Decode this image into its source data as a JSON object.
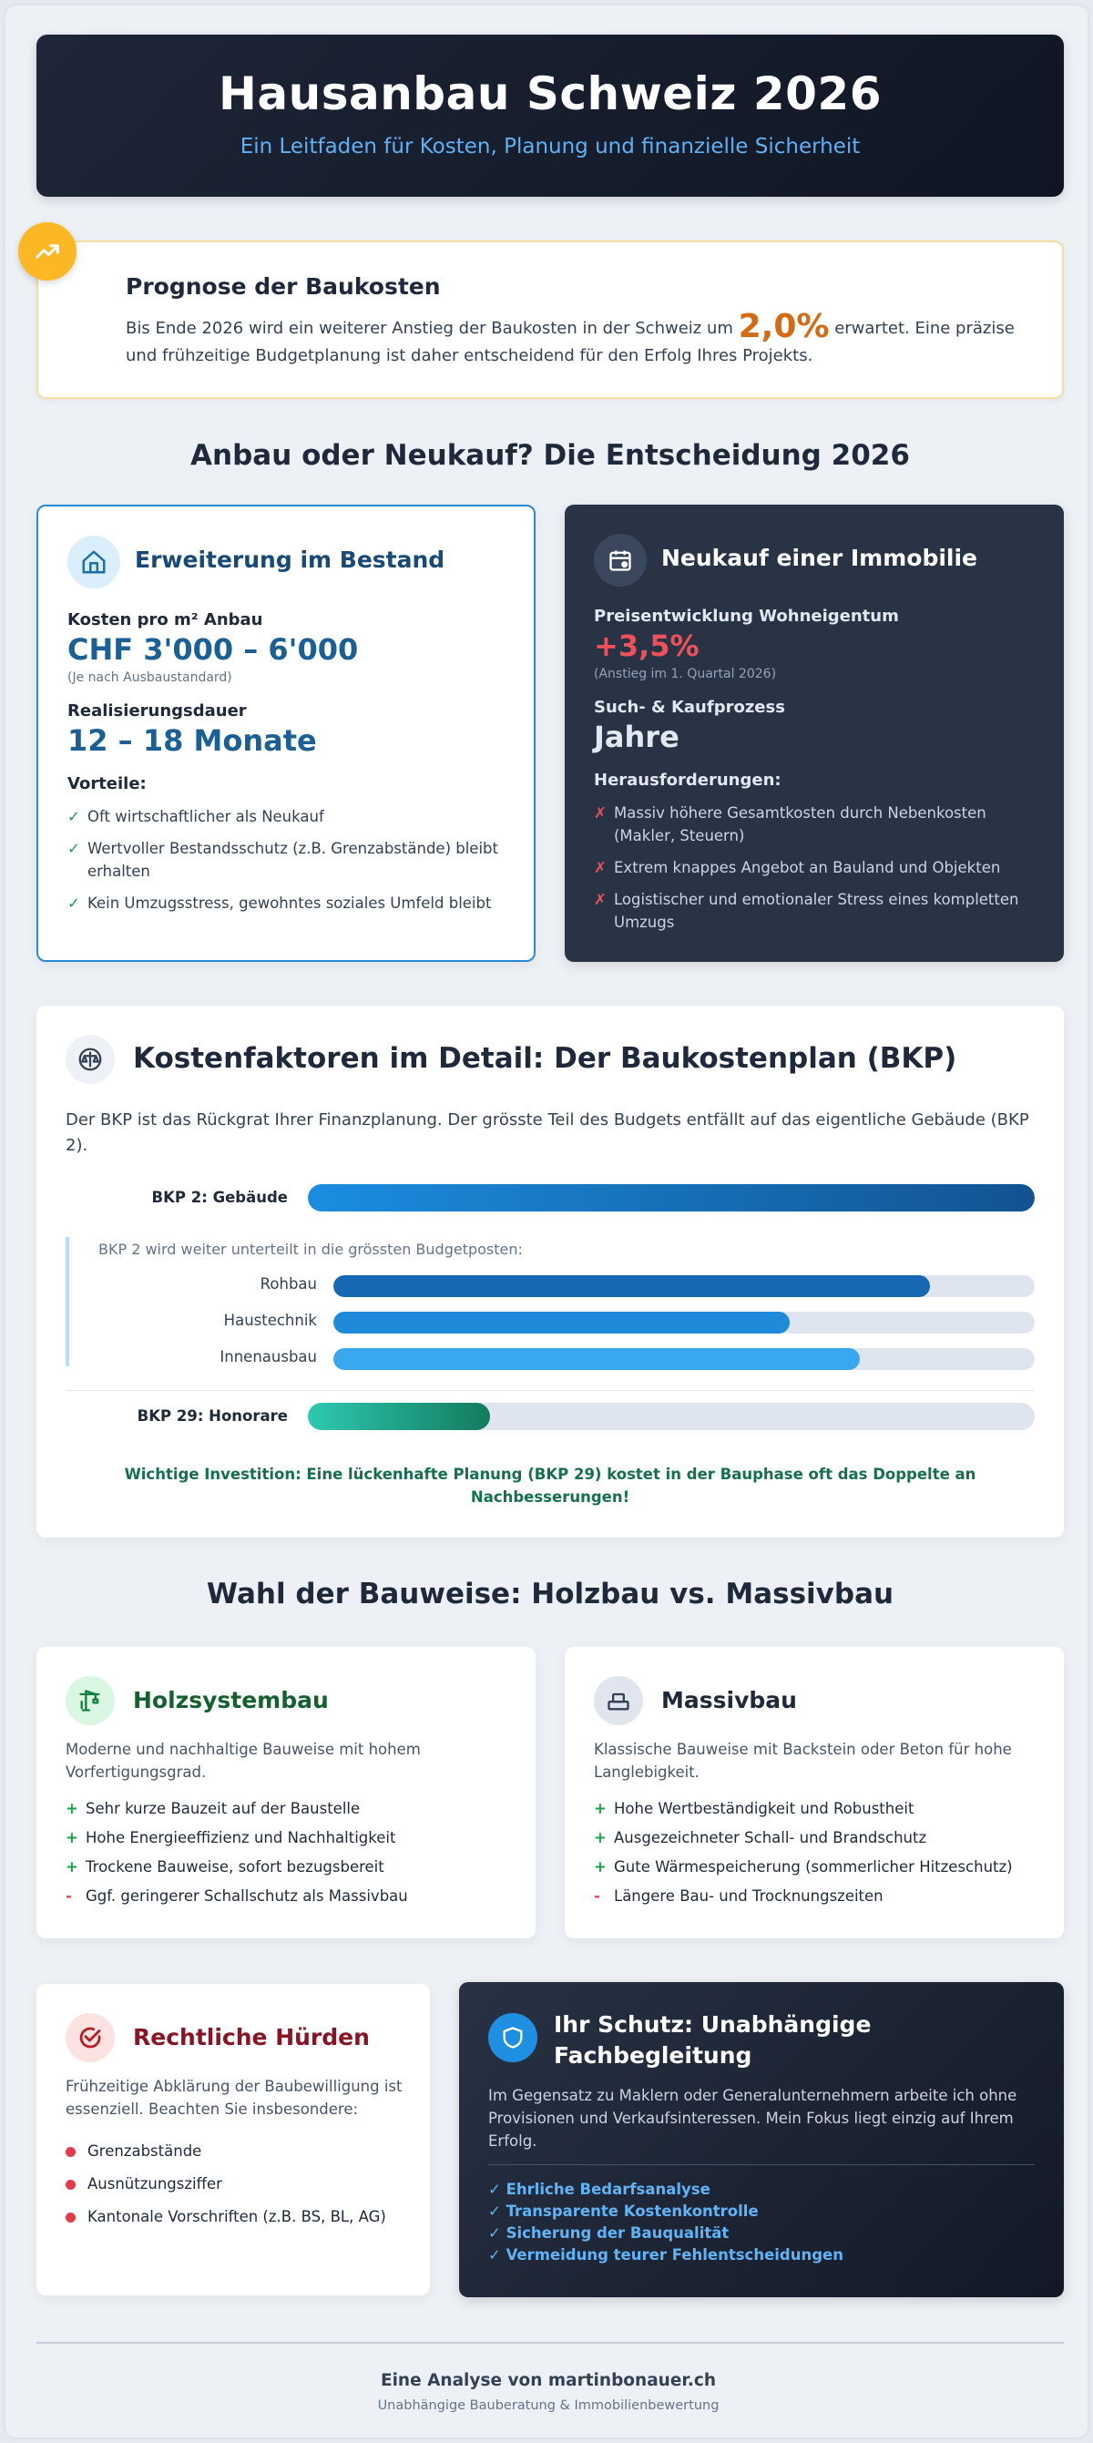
{
  "header": {
    "title": "Hausanbau Schweiz 2026",
    "subtitle": "Ein Leitfaden für Kosten, Planung und finanzielle Sicherheit"
  },
  "forecast": {
    "icon": "trending-up-icon",
    "title": "Prognose der Baukosten",
    "text_before": "Bis Ende 2026 wird ein weiterer Anstieg der Baukosten in der Schweiz um",
    "highlight": "2,0%",
    "text_after": "erwartet. Eine präzise und frühzeitige Budgetplanung ist daher entscheidend für den Erfolg Ihres Projekts."
  },
  "decision": {
    "title": "Anbau oder Neukauf? Die Entscheidung 2026",
    "extension": {
      "icon": "house-icon",
      "title": "Erweiterung im Bestand",
      "cost_label": "Kosten pro m² Anbau",
      "cost_value": "CHF 3'000 – 6'000",
      "cost_note": "(Je nach Ausbaustandard)",
      "duration_label": "Realisierungsdauer",
      "duration_value": "12 – 18 Monate",
      "pros_label": "Vorteile:",
      "pros": [
        "Oft wirtschaftlicher als Neukauf",
        "Wertvoller Bestandsschutz (z.B. Grenzabstände) bleibt erhalten",
        "Kein Umzugsstress, gewohntes soziales Umfeld bleibt"
      ]
    },
    "purchase": {
      "icon": "calendar-icon",
      "title": "Neukauf einer Immobilie",
      "price_label": "Preisentwicklung Wohneigentum",
      "price_value": "+3,5%",
      "price_note": "(Anstieg im 1. Quartal 2026)",
      "process_label": "Such- & Kaufprozess",
      "process_value": "Jahre",
      "cons_label": "Herausforderungen:",
      "cons": [
        "Massiv höhere Gesamtkosten durch Nebenkosten (Makler, Steuern)",
        "Extrem knappes Angebot an Bauland und Objekten",
        "Logistischer und emotionaler Stress eines kompletten Umzugs"
      ]
    }
  },
  "bkp": {
    "icon": "scale-icon",
    "title": "Kostenfaktoren im Detail: Der Baukostenplan (BKP)",
    "intro": "Der BKP ist das Rückgrat Ihrer Finanzplanung. Der grösste Teil des Budgets entfällt auf das eigentliche Gebäude (BKP 2).",
    "main_bar": {
      "label": "BKP 2: Gebäude",
      "fill": 1.0
    },
    "sub_intro": "BKP 2 wird weiter unterteilt in die grössten Budgetposten:",
    "sub_bars": [
      {
        "label": "Rohbau",
        "fill": 0.85
      },
      {
        "label": "Haustechnik",
        "fill": 0.65
      },
      {
        "label": "Innenausbau",
        "fill": 0.75
      }
    ],
    "fee_bar": {
      "label": "BKP 29: Honorare",
      "fill": 0.25
    },
    "warning": "Wichtige Investition: Eine lückenhafte Planung (BKP 29) kostet in der Bauphase oft das Doppelte an Nachbesserungen!"
  },
  "construction": {
    "title": "Wahl der Bauweise: Holzbau vs. Massivbau",
    "wood": {
      "icon": "crane-icon",
      "title": "Holzsystembau",
      "desc": "Moderne und nachhaltige Bauweise mit hohem Vorfertigungsgrad.",
      "items": [
        {
          "mark": "+",
          "text": "Sehr kurze Bauzeit auf der Baustelle"
        },
        {
          "mark": "+",
          "text": "Hohe Energieeffizienz und Nachhaltigkeit"
        },
        {
          "mark": "+",
          "text": "Trockene Bauweise, sofort bezugsbereit"
        },
        {
          "mark": "-",
          "text": "Ggf. geringerer Schallschutz als Massivbau"
        }
      ]
    },
    "solid": {
      "icon": "brick-icon",
      "title": "Massivbau",
      "desc": "Klassische Bauweise mit Backstein oder Beton für hohe Langlebigkeit.",
      "items": [
        {
          "mark": "+",
          "text": "Hohe Wertbeständigkeit und Robustheit"
        },
        {
          "mark": "+",
          "text": "Ausgezeichneter Schall- und Brandschutz"
        },
        {
          "mark": "+",
          "text": "Gute Wärmespeicherung (sommerlicher Hitzeschutz)"
        },
        {
          "mark": "-",
          "text": "Längere Bau- und Trocknungszeiten"
        }
      ]
    }
  },
  "legal": {
    "icon": "check-circle-icon",
    "title": "Rechtliche Hürden",
    "desc": "Frühzeitige Abklärung der Baubewilligung ist essenziell. Beachten Sie insbesondere:",
    "items": [
      "Grenzabstände",
      "Ausnützungsziffer",
      "Kantonale Vorschriften (z.B. BS, BL, AG)"
    ]
  },
  "protection": {
    "icon": "shield-icon",
    "title": "Ihr Schutz: Unabhängige Fachbegleitung",
    "desc": "Im Gegensatz zu Maklern oder Generalunternehmern arbeite ich ohne Provisionen und Verkaufsinteressen. Mein Fokus liegt einzig auf Ihrem Erfolg.",
    "items": [
      "✓ Ehrliche Bedarfsanalyse",
      "✓ Transparente Kostenkontrolle",
      "✓ Sicherung der Bauqualität",
      "✓ Vermeidung teurer Fehlentscheidungen"
    ]
  },
  "footer": {
    "title": "Eine Analyse von martinbonauer.ch",
    "subtitle": "Unabhängige Bauberatung & Immobilienbewertung"
  },
  "colors": {
    "accent": "#1a5f96",
    "orange": "#d46a12",
    "green": "#15803d",
    "red": "#ef4444",
    "dark": "#0f1522"
  }
}
